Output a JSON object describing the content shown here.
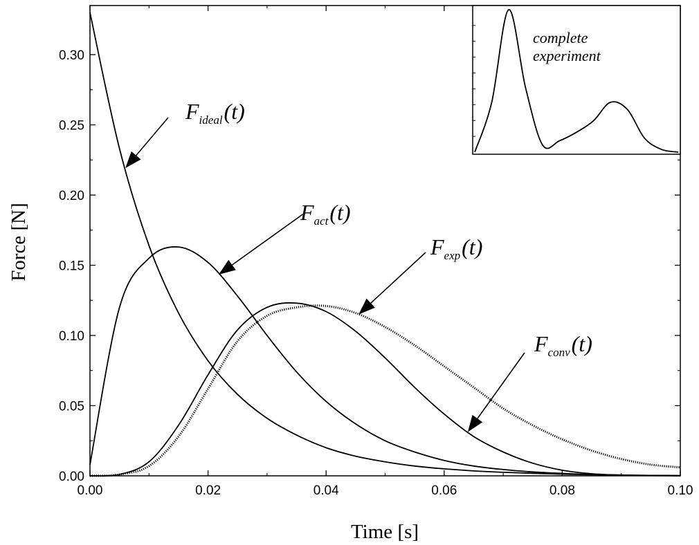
{
  "chart_data": {
    "type": "line",
    "xlabel": "Time [s]",
    "ylabel": "Force [N]",
    "xlim": [
      0,
      0.1
    ],
    "ylim": [
      0,
      0.335
    ],
    "x_ticks": [
      "0.00",
      "0.02",
      "0.04",
      "0.06",
      "0.08",
      "0.10"
    ],
    "y_ticks": [
      "0.00",
      "0.05",
      "0.10",
      "0.15",
      "0.20",
      "0.25",
      "0.30"
    ],
    "x": [
      0,
      0.005,
      0.01,
      0.015,
      0.02,
      0.025,
      0.03,
      0.035,
      0.04,
      0.045,
      0.05,
      0.055,
      0.06,
      0.065,
      0.07,
      0.075,
      0.08,
      0.085,
      0.09,
      0.095,
      0.1
    ],
    "series": [
      {
        "name": "F_ideal(t)",
        "values": [
          0.33,
          0.233,
          0.164,
          0.116,
          0.082,
          0.058,
          0.041,
          0.029,
          0.02,
          0.014,
          0.01,
          0.007,
          0.005,
          0.0035,
          0.0025,
          0.0018,
          0.0012,
          0.0008,
          0.0005,
          0.0003,
          0.0002
        ]
      },
      {
        "name": "F_act(t)",
        "values": [
          0.008,
          0.12,
          0.155,
          0.163,
          0.152,
          0.128,
          0.1,
          0.074,
          0.053,
          0.037,
          0.025,
          0.017,
          0.011,
          0.007,
          0.0045,
          0.0028,
          0.0017,
          0.001,
          0.0006,
          0.0003,
          0.0001
        ]
      },
      {
        "name": "F_conv(t)",
        "values": [
          0,
          0.001,
          0.01,
          0.036,
          0.072,
          0.104,
          0.12,
          0.123,
          0.117,
          0.103,
          0.084,
          0.063,
          0.044,
          0.028,
          0.017,
          0.009,
          0.004,
          0.0015,
          0.0005,
          0.0002,
          0.0001
        ]
      },
      {
        "name": "F_exp(t)",
        "values": [
          0,
          0.001,
          0.007,
          0.028,
          0.062,
          0.096,
          0.114,
          0.12,
          0.121,
          0.116,
          0.106,
          0.093,
          0.078,
          0.063,
          0.048,
          0.036,
          0.026,
          0.018,
          0.012,
          0.008,
          0.006
        ]
      }
    ],
    "annotations": [
      {
        "series": "F_ideal(t)",
        "main": "F",
        "sub": "ideal",
        "tail": "(t)"
      },
      {
        "series": "F_act(t)",
        "main": "F",
        "sub": "act",
        "tail": "(t)"
      },
      {
        "series": "F_exp(t)",
        "main": "F",
        "sub": "exp",
        "tail": "(t)"
      },
      {
        "series": "F_conv(t)",
        "main": "F",
        "sub": "conv",
        "tail": "(t)"
      }
    ],
    "inset": {
      "label_line1": "complete",
      "label_line2": "experiment",
      "values": [
        0.0,
        0.35,
        1.0,
        0.45,
        0.05,
        0.08,
        0.14,
        0.22,
        0.35,
        0.3,
        0.1,
        0.02,
        0.0
      ]
    }
  }
}
